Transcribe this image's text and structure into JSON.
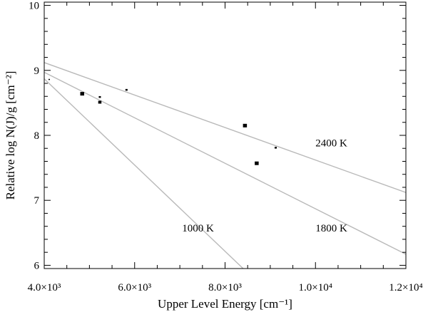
{
  "chart_data": {
    "type": "scatter",
    "title": "",
    "xlabel": "Upper Level Energy [cm⁻¹]",
    "ylabel": "Relative log N(J)/g [cm⁻²]",
    "xlim": [
      4000,
      12000
    ],
    "ylim": [
      5.95,
      10.05
    ],
    "x_ticks": [
      {
        "value": 4000,
        "label": "4.0×10³"
      },
      {
        "value": 6000,
        "label": "6.0×10³"
      },
      {
        "value": 8000,
        "label": "8.0×10³"
      },
      {
        "value": 10000,
        "label": "1.0×10⁴"
      },
      {
        "value": 12000,
        "label": "1.2×10⁴"
      }
    ],
    "y_ticks": [
      {
        "value": 6,
        "label": "6"
      },
      {
        "value": 7,
        "label": "7"
      },
      {
        "value": 8,
        "label": "8"
      },
      {
        "value": 9,
        "label": "9"
      },
      {
        "value": 10,
        "label": "10"
      }
    ],
    "grid": false,
    "points": [
      {
        "x": 4110,
        "y": 8.86,
        "size": "tiny"
      },
      {
        "x": 4840,
        "y": 8.64,
        "size": "large"
      },
      {
        "x": 5230,
        "y": 8.59,
        "size": "small"
      },
      {
        "x": 5230,
        "y": 8.51,
        "size": "medium"
      },
      {
        "x": 5820,
        "y": 8.7,
        "size": "small"
      },
      {
        "x": 8440,
        "y": 8.15,
        "size": "large"
      },
      {
        "x": 8700,
        "y": 7.57,
        "size": "large"
      },
      {
        "x": 9120,
        "y": 7.81,
        "size": "small"
      }
    ],
    "fit_lines": [
      {
        "label": "2400 K",
        "x0": 4000,
        "y0": 9.12,
        "x1": 12000,
        "y1": 7.12,
        "label_x": 10000,
        "label_y": 7.83
      },
      {
        "label": "1800 K",
        "x0": 4000,
        "y0": 8.97,
        "x1": 12000,
        "y1": 6.17,
        "label_x": 10000,
        "label_y": 6.52
      },
      {
        "label": "1000 K",
        "x0": 4000,
        "y0": 8.87,
        "x1": 8400,
        "y1": 5.95,
        "label_x": 7050,
        "label_y": 6.52
      }
    ],
    "colors": {
      "points": "#000000",
      "lines": "#b9b9b9",
      "axes": "#000000"
    }
  }
}
